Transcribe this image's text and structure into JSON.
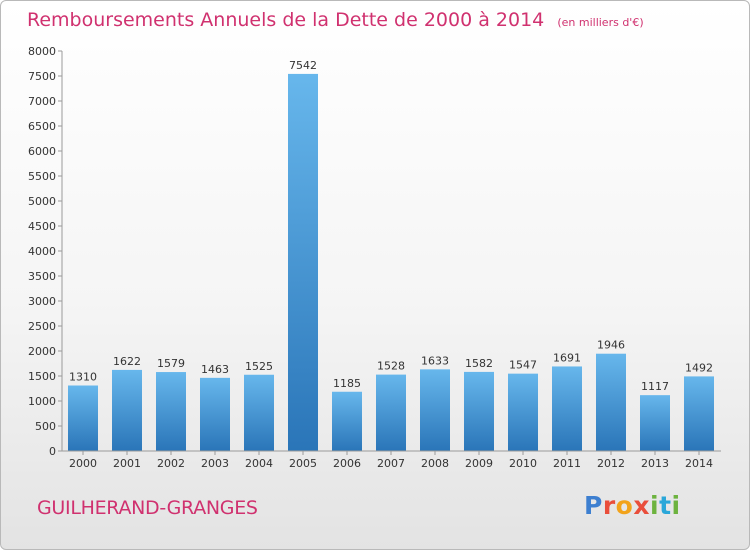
{
  "chart_data": {
    "type": "bar",
    "title": "Remboursements Annuels de la Dette de 2000 à 2014",
    "unit_note": "(en milliers d'€)",
    "categories": [
      "2000",
      "2001",
      "2002",
      "2003",
      "2004",
      "2005",
      "2006",
      "2007",
      "2008",
      "2009",
      "2010",
      "2011",
      "2012",
      "2013",
      "2014"
    ],
    "values": [
      1310,
      1622,
      1579,
      1463,
      1525,
      7542,
      1185,
      1528,
      1633,
      1582,
      1547,
      1691,
      1946,
      1117,
      1492
    ],
    "ylim": [
      0,
      8000
    ],
    "yticks": [
      0,
      500,
      1000,
      1500,
      2000,
      2500,
      3000,
      3500,
      4000,
      4500,
      5000,
      5500,
      6000,
      6500,
      7000,
      7500,
      8000
    ],
    "grid": false,
    "bar_color_top": "#67b7ec",
    "bar_color_bottom": "#2a75b8"
  },
  "footer": {
    "commune": "GUILHERAND-GRANGES",
    "logo_letters": [
      "P",
      "r",
      "o",
      "x",
      "i",
      "t",
      "i"
    ]
  },
  "colors": {
    "title": "#d0316f",
    "commune": "#d0316f"
  }
}
